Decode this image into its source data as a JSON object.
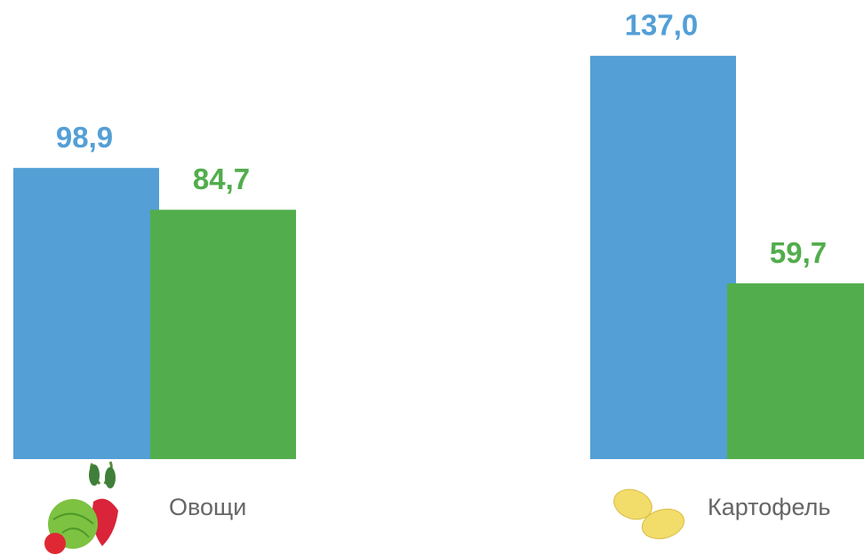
{
  "chart_data": {
    "type": "bar",
    "categories": [
      "Овощи",
      "Картофель"
    ],
    "series": [
      {
        "color": "#539fd6",
        "values": [
          98.9,
          137.0
        ],
        "value_labels": [
          "98,9",
          "137,0"
        ]
      },
      {
        "color": "#52ad4c",
        "values": [
          84.7,
          59.7
        ],
        "value_labels": [
          "84,7",
          "59,7"
        ]
      }
    ]
  }
}
